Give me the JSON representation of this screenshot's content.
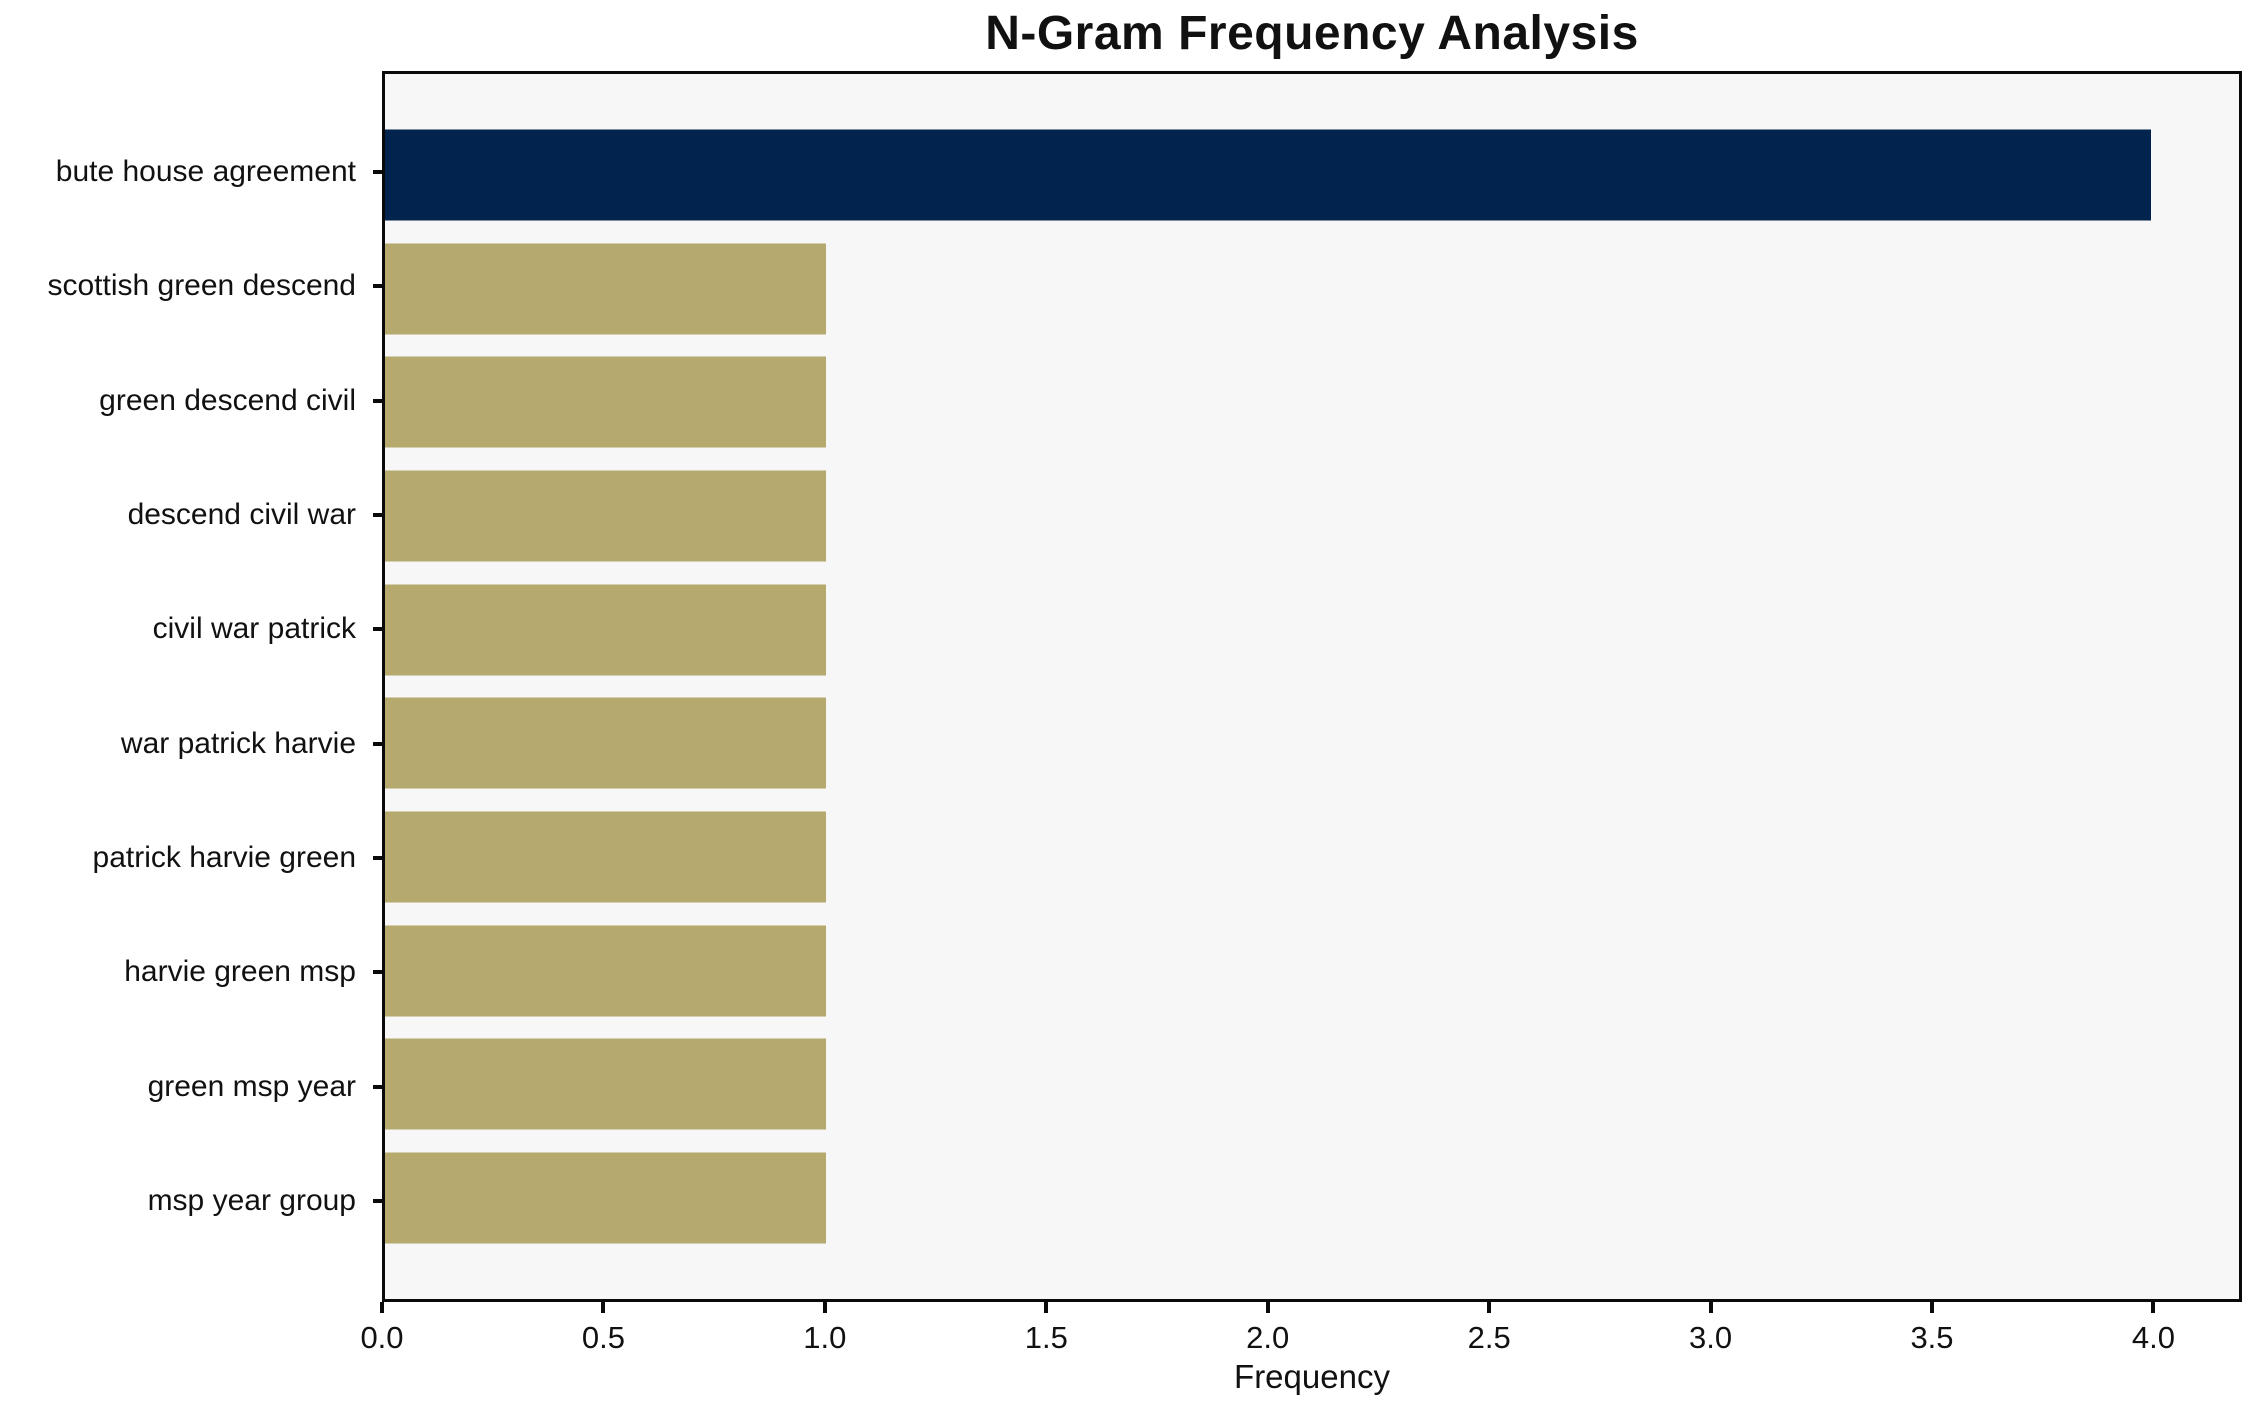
{
  "chart_data": {
    "type": "bar",
    "orientation": "horizontal",
    "title": "N-Gram Frequency Analysis",
    "xlabel": "Frequency",
    "ylabel": "",
    "categories": [
      "bute house agreement",
      "scottish green descend",
      "green descend civil",
      "descend civil war",
      "civil war patrick",
      "war patrick harvie",
      "patrick harvie green",
      "harvie green msp",
      "green msp year",
      "msp year group"
    ],
    "values": [
      4,
      1,
      1,
      1,
      1,
      1,
      1,
      1,
      1,
      1
    ],
    "bar_colors": [
      "#01234e",
      "#b6a96e",
      "#b6a96e",
      "#b6a96e",
      "#b6a96e",
      "#b6a96e",
      "#b6a96e",
      "#b6a96e",
      "#b6a96e",
      "#b6a96e"
    ],
    "xlim": [
      0,
      4.2
    ],
    "xticks": [
      0.0,
      0.5,
      1.0,
      1.5,
      2.0,
      2.5,
      3.0,
      3.5,
      4.0
    ],
    "xtick_labels": [
      "0.0",
      "0.5",
      "1.0",
      "1.5",
      "2.0",
      "2.5",
      "3.0",
      "3.5",
      "4.0"
    ],
    "grid": false,
    "legend": false,
    "colors": {
      "plot_background": "#f7f7f7",
      "figure_background": "#ffffff",
      "highlight_bar": "#01234e",
      "default_bar": "#b6a96e",
      "spine": "#0a0a0a",
      "text": "#111111"
    }
  }
}
